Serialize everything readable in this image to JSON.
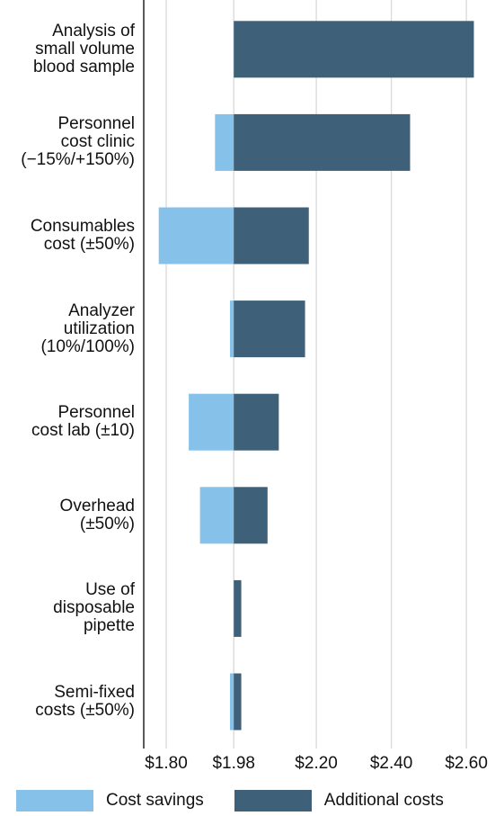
{
  "chart_data": {
    "type": "bar",
    "orientation": "horizontal",
    "baseline": 1.98,
    "categories": [
      "Analysis of\nsmall volume\nblood sample",
      "Personnel\ncost clinic\n(−15%/+150%)",
      "Consumables\ncost (±50%)",
      "Analyzer\nutilization\n(10%/100%)",
      "Personnel\ncost lab (±10)",
      "Overhead\n(±50%)",
      "Use of\ndisposable\npipette",
      "Semi-fixed\ncosts (±50%)"
    ],
    "series": [
      {
        "name": "Cost savings",
        "values": [
          1.98,
          1.93,
          1.78,
          1.97,
          1.86,
          1.89,
          1.98,
          1.97
        ]
      },
      {
        "name": "Additional costs",
        "values": [
          2.62,
          2.45,
          2.18,
          2.17,
          2.1,
          2.07,
          2.0,
          2.0
        ]
      }
    ],
    "xlim": [
      1.74,
      2.65
    ],
    "xticks": [
      "$1.80",
      "$1.98",
      "$2.20",
      "$2.40",
      "$2.60"
    ],
    "xtick_values": [
      1.8,
      1.98,
      2.2,
      2.4,
      2.6
    ],
    "grid": true,
    "legend_position": "bottom"
  },
  "colors": {
    "savings": "#85c1e9",
    "additional": "#3e6079",
    "grid": "#d9d9d9",
    "axis": "#222222"
  }
}
